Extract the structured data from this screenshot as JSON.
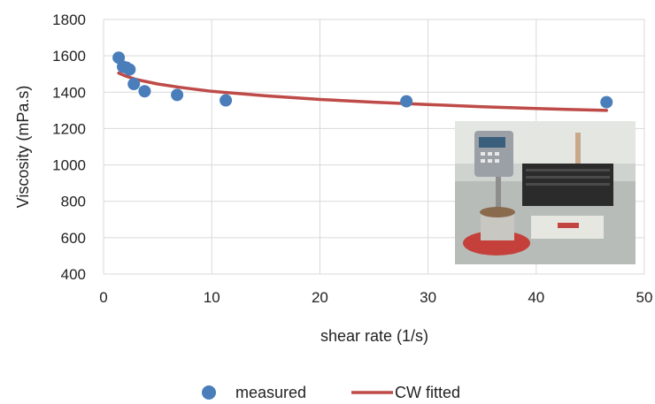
{
  "chart_data": {
    "type": "scatter",
    "xlabel": "shear rate (1/s)",
    "ylabel": "Viscosity (mPa.s)",
    "xlim": [
      0,
      50
    ],
    "ylim": [
      400,
      1800
    ],
    "x_ticks": [
      0,
      10,
      20,
      30,
      40,
      50
    ],
    "y_ticks": [
      400,
      600,
      800,
      1000,
      1200,
      1400,
      1600,
      1800
    ],
    "grid": true,
    "legend_position": "bottom",
    "series": [
      {
        "name": "measured",
        "kind": "scatter",
        "color": "#4a7ebb",
        "points": [
          [
            1.4,
            1590
          ],
          [
            1.8,
            1540
          ],
          [
            2.1,
            1535
          ],
          [
            2.4,
            1525
          ],
          [
            2.8,
            1445
          ],
          [
            3.8,
            1405
          ],
          [
            6.8,
            1385
          ],
          [
            11.3,
            1355
          ],
          [
            28.0,
            1350
          ],
          [
            46.5,
            1345
          ]
        ]
      },
      {
        "name": "CW fitted",
        "kind": "line",
        "color": "#be4b48",
        "points": [
          [
            1.4,
            1505
          ],
          [
            2,
            1490
          ],
          [
            3,
            1470
          ],
          [
            5,
            1445
          ],
          [
            7,
            1427
          ],
          [
            10,
            1405
          ],
          [
            15,
            1380
          ],
          [
            20,
            1360
          ],
          [
            25,
            1345
          ],
          [
            30,
            1332
          ],
          [
            35,
            1320
          ],
          [
            40,
            1310
          ],
          [
            46.5,
            1300
          ]
        ]
      }
    ],
    "photo_inset": "viscometer-photo"
  }
}
